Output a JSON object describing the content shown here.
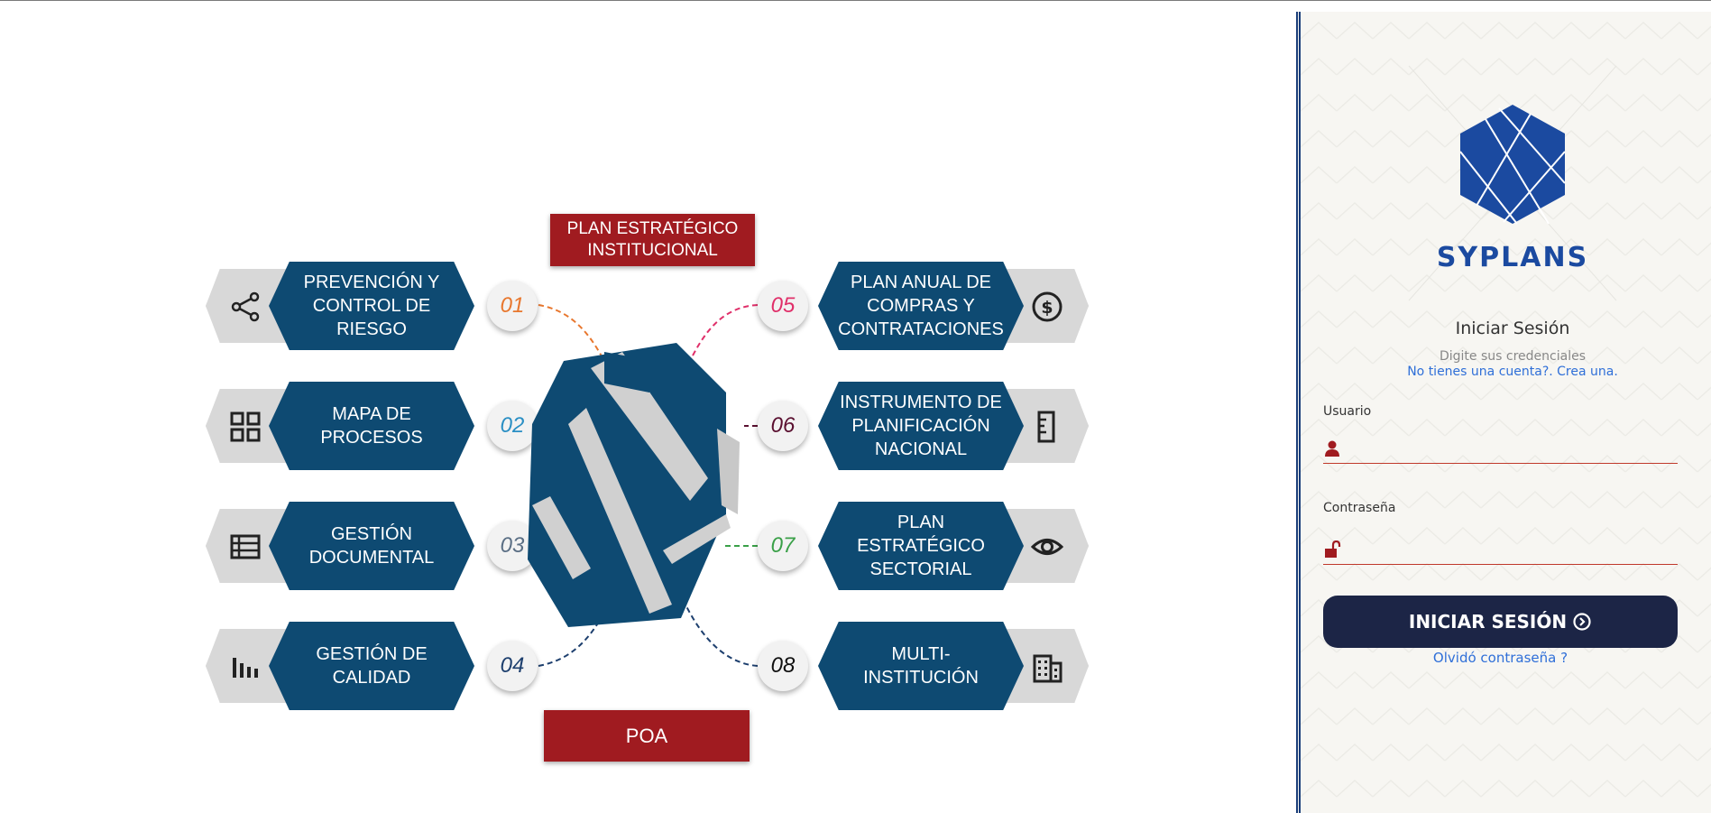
{
  "infographic": {
    "banner_top": "PLAN ESTRATÉGICO INSTITUCIONAL",
    "banner_bottom": "POA",
    "left_items": [
      {
        "number": "01",
        "label": "PREVENCIÓN Y CONTROL DE RIESGO",
        "icon": "share-icon",
        "color": "#e8772e"
      },
      {
        "number": "02",
        "label": "MAPA DE PROCESOS",
        "icon": "grid-icon",
        "color": "#2a8fc4"
      },
      {
        "number": "03",
        "label": "GESTIÓN DOCUMENTAL",
        "icon": "list-icon",
        "color": "#5b6f85"
      },
      {
        "number": "04",
        "label": "GESTIÓN DE CALIDAD",
        "icon": "bar-chart-icon",
        "color": "#1d3f6e"
      }
    ],
    "right_items": [
      {
        "number": "05",
        "label": "PLAN ANUAL DE COMPRAS Y CONTRATACIONES",
        "icon": "dollar-icon",
        "color": "#e0306a"
      },
      {
        "number": "06",
        "label": "INSTRUMENTO DE PLANIFICACIÓN NACIONAL",
        "icon": "ruler-icon",
        "color": "#5a1030"
      },
      {
        "number": "07",
        "label": "PLAN ESTRATÉGICO SECTORIAL",
        "icon": "eye-icon",
        "color": "#3aa048"
      },
      {
        "number": "08",
        "label": "MULTI-INSTITUCIÓN",
        "icon": "building-icon",
        "color": "#111111"
      }
    ]
  },
  "login": {
    "brand": "SYPLANS",
    "title": "Iniciar Sesión",
    "subtitle": "Digite sus credenciales",
    "signup_link": "No tienes una cuenta?. Crea una.",
    "username_label": "Usuario",
    "username_value": "",
    "password_label": "Contraseña",
    "password_value": "",
    "submit_label": "INICIAR SESIÓN",
    "forgot_link": "Olvidó contraseña ?"
  },
  "colors": {
    "hex_blue": "#0e4a72",
    "banner_red": "#a01b20",
    "brand_blue": "#1b4aa0",
    "button_navy": "#1c2546",
    "link_blue": "#2f6fd8"
  }
}
